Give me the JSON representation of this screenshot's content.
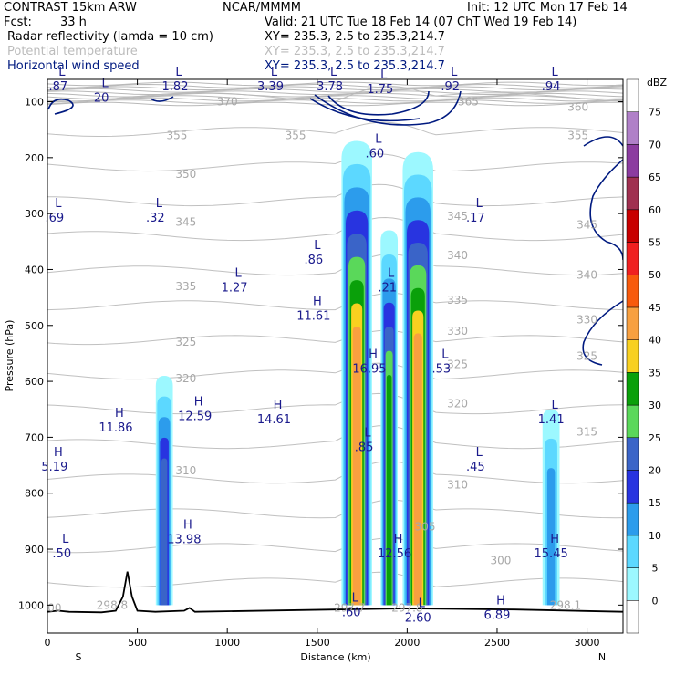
{
  "header": {
    "model": "CONTRAST 15km ARW",
    "org": "NCAR/MMMM",
    "init": "Init: 12 UTC Mon 17 Feb 14",
    "fcst_label": "Fcst:",
    "fcst_value": "33 h",
    "valid": "Valid: 21 UTC Tue 18 Feb 14 (07 ChT Wed 19 Feb 14)",
    "fields": [
      {
        "name": "Radar reflectivity (lamda = 10 cm)",
        "xy": "XY= 235.3,  2.5 to 235.3,214.7",
        "color": "#000000"
      },
      {
        "name": "Potential temperature",
        "xy": "XY= 235.3,  2.5 to 235.3,214.7",
        "color": "#bcbcbc"
      },
      {
        "name": "Horizontal wind speed",
        "xy": "XY= 235.3,  2.5 to 235.3,214.7",
        "color": "#001a80"
      }
    ]
  },
  "chart_data": {
    "type": "heatmap",
    "xlabel": "Distance (km)",
    "ylabel": "Pressure (hPa)",
    "xlim": [
      0,
      3200
    ],
    "ylim": [
      1050,
      60
    ],
    "x_ticks": [
      0,
      500,
      1000,
      1500,
      2000,
      2500,
      3000
    ],
    "y_ticks": [
      100,
      200,
      300,
      400,
      500,
      600,
      700,
      800,
      900,
      1000
    ],
    "x_end_labels": {
      "left": "S",
      "right": "N"
    },
    "colorbar": {
      "unit": "dBZ",
      "levels": [
        0,
        5,
        10,
        15,
        20,
        25,
        30,
        35,
        40,
        45,
        50,
        55,
        60,
        65,
        70,
        75
      ],
      "colors": [
        "#ffffff",
        "#9cf8ff",
        "#5cd8ff",
        "#2c9cec",
        "#2834e0",
        "#3a64c8",
        "#5ad85a",
        "#0aa00a",
        "#f8d020",
        "#f8a040",
        "#f85a0c",
        "#f02020",
        "#c80000",
        "#a03050",
        "#8c3ca0",
        "#b080c8",
        "#ffffff"
      ]
    },
    "reflectivity_cells": [
      {
        "x": 650,
        "top": 590,
        "bottom": 1000,
        "max_dbz": 25
      },
      {
        "x": 1720,
        "top": 170,
        "bottom": 1000,
        "max_dbz": 45
      },
      {
        "x": 1900,
        "top": 330,
        "bottom": 1000,
        "max_dbz": 35
      },
      {
        "x": 2060,
        "top": 190,
        "bottom": 1000,
        "max_dbz": 45
      },
      {
        "x": 2800,
        "top": 650,
        "bottom": 1000,
        "max_dbz": 15
      }
    ],
    "theta_labels": [
      {
        "v": "370",
        "x": 1000,
        "p": 100
      },
      {
        "v": "365",
        "x": 2340,
        "p": 100
      },
      {
        "v": "360",
        "x": 2950,
        "p": 110
      },
      {
        "v": "355",
        "x": 720,
        "p": 160
      },
      {
        "v": "355",
        "x": 1380,
        "p": 160
      },
      {
        "v": "355",
        "x": 2950,
        "p": 160
      },
      {
        "v": "350",
        "x": 770,
        "p": 230
      },
      {
        "v": "345",
        "x": 770,
        "p": 315
      },
      {
        "v": "345",
        "x": 2280,
        "p": 305
      },
      {
        "v": "345",
        "x": 3000,
        "p": 320
      },
      {
        "v": "340",
        "x": 2280,
        "p": 375
      },
      {
        "v": "340",
        "x": 3000,
        "p": 410
      },
      {
        "v": "335",
        "x": 770,
        "p": 430
      },
      {
        "v": "335",
        "x": 2280,
        "p": 455
      },
      {
        "v": "330",
        "x": 2280,
        "p": 510
      },
      {
        "v": "330",
        "x": 3000,
        "p": 490
      },
      {
        "v": "325",
        "x": 770,
        "p": 530
      },
      {
        "v": "325",
        "x": 2280,
        "p": 570
      },
      {
        "v": "325",
        "x": 3000,
        "p": 555
      },
      {
        "v": "320",
        "x": 770,
        "p": 595
      },
      {
        "v": "320",
        "x": 2280,
        "p": 640
      },
      {
        "v": "315",
        "x": 3000,
        "p": 690
      },
      {
        "v": "310",
        "x": 770,
        "p": 760
      },
      {
        "v": "310",
        "x": 2280,
        "p": 785
      },
      {
        "v": "305",
        "x": 2100,
        "p": 860
      },
      {
        "v": "300",
        "x": 2520,
        "p": 920
      },
      {
        "v": "298.8",
        "x": 360,
        "p": 1000
      },
      {
        "v": "297.7",
        "x": 1680,
        "p": 1005
      },
      {
        "v": "297.8",
        "x": 2000,
        "p": 1005
      },
      {
        "v": "298.1",
        "x": 2880,
        "p": 1000
      },
      {
        "v": "00",
        "x": 40,
        "p": 1005
      }
    ],
    "wind_extrema": [
      {
        "t": "L",
        "v": ".87",
        "x": 60,
        "p": 60
      },
      {
        "t": "L",
        "v": "20",
        "x": 300,
        "p": 80
      },
      {
        "t": "L",
        "v": "1.82",
        "x": 710,
        "p": 60
      },
      {
        "t": "L",
        "v": "3.39",
        "x": 1240,
        "p": 60
      },
      {
        "t": "L",
        "v": "3.78",
        "x": 1570,
        "p": 60
      },
      {
        "t": "L",
        "v": "1.75",
        "x": 1850,
        "p": 65
      },
      {
        "t": "L",
        "v": ".92",
        "x": 2240,
        "p": 60
      },
      {
        "t": "L",
        "v": ".94",
        "x": 2800,
        "p": 60
      },
      {
        "t": "L",
        "v": ".60",
        "x": 1820,
        "p": 180
      },
      {
        "t": "L",
        "v": ".69",
        "x": 40,
        "p": 295
      },
      {
        "t": "L",
        "v": ".32",
        "x": 600,
        "p": 295
      },
      {
        "t": "L",
        "v": ".17",
        "x": 2380,
        "p": 295
      },
      {
        "t": "L",
        "v": ".86",
        "x": 1480,
        "p": 370
      },
      {
        "t": "L",
        "v": "1.27",
        "x": 1040,
        "p": 420
      },
      {
        "t": "L",
        "v": ".21",
        "x": 1890,
        "p": 420
      },
      {
        "t": "H",
        "v": "11.61",
        "x": 1480,
        "p": 470
      },
      {
        "t": "H",
        "v": "16.95",
        "x": 1790,
        "p": 565
      },
      {
        "t": "L",
        "v": ".53",
        "x": 2190,
        "p": 565
      },
      {
        "t": "H",
        "v": "11.86",
        "x": 380,
        "p": 670
      },
      {
        "t": "H",
        "v": "12.59",
        "x": 820,
        "p": 650
      },
      {
        "t": "H",
        "v": "14.61",
        "x": 1260,
        "p": 655
      },
      {
        "t": "L",
        "v": "1.41",
        "x": 2800,
        "p": 655
      },
      {
        "t": "L",
        "v": ".85",
        "x": 1760,
        "p": 705
      },
      {
        "t": "H",
        "v": "5.19",
        "x": 40,
        "p": 740
      },
      {
        "t": "L",
        "v": ".45",
        "x": 2380,
        "p": 740
      },
      {
        "t": "H",
        "v": "13.98",
        "x": 760,
        "p": 870
      },
      {
        "t": "H",
        "v": "12.56",
        "x": 1930,
        "p": 895
      },
      {
        "t": "H",
        "v": "15.45",
        "x": 2800,
        "p": 895
      },
      {
        "t": "L",
        "v": ".50",
        "x": 80,
        "p": 895
      },
      {
        "t": "L",
        "v": ".60",
        "x": 1690,
        "p": 1000
      },
      {
        "t": "L",
        "v": "2.60",
        "x": 2060,
        "p": 1010
      },
      {
        "t": "H",
        "v": "6.89",
        "x": 2500,
        "p": 1005
      }
    ],
    "terrain": [
      [
        0,
        1012
      ],
      [
        60,
        1010
      ],
      [
        120,
        1012
      ],
      [
        300,
        1013
      ],
      [
        380,
        1010
      ],
      [
        420,
        985
      ],
      [
        445,
        940
      ],
      [
        470,
        985
      ],
      [
        500,
        1010
      ],
      [
        600,
        1012
      ],
      [
        760,
        1010
      ],
      [
        790,
        1005
      ],
      [
        820,
        1012
      ],
      [
        1600,
        1008
      ],
      [
        2000,
        1006
      ],
      [
        2600,
        1008
      ],
      [
        3200,
        1012
      ]
    ]
  }
}
